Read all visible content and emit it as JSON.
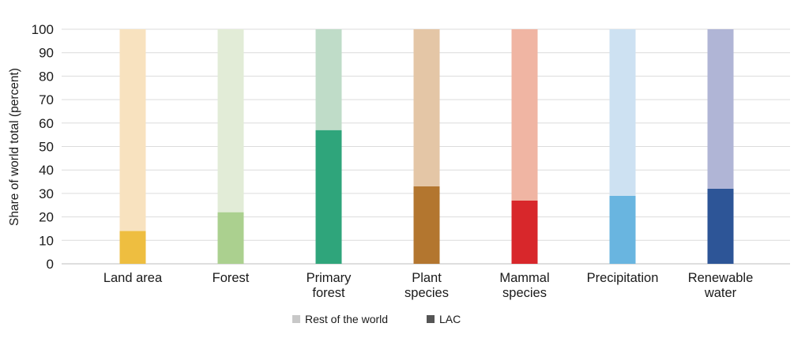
{
  "chart_data": {
    "type": "bar",
    "stacked": true,
    "categories": [
      [
        "Land area"
      ],
      [
        "Forest"
      ],
      [
        "Primary",
        "forest"
      ],
      [
        "Plant",
        "species"
      ],
      [
        "Mammal",
        "species"
      ],
      [
        "Precipitation"
      ],
      [
        "Renewable",
        "water"
      ]
    ],
    "series": [
      {
        "name": "LAC",
        "values": [
          14,
          22,
          57,
          33,
          27,
          29,
          32
        ]
      },
      {
        "name": "Rest of the world",
        "values": [
          86,
          78,
          43,
          67,
          73,
          71,
          68
        ]
      }
    ],
    "colors": {
      "LAC": [
        "#eebe40",
        "#abd08f",
        "#2fa57b",
        "#b3762f",
        "#d8272b",
        "#69b5e0",
        "#2d5597"
      ],
      "Rest of the world": [
        "#f8e2bf",
        "#e2ecd7",
        "#bfdcc8",
        "#e4c6a6",
        "#f0b5a3",
        "#cde1f2",
        "#b0b5d6"
      ]
    },
    "legend_swatch_colors": {
      "Rest of the world": "#c8c8c8",
      "LAC": "#555555"
    },
    "ylabel": "Share of world total (percent)",
    "ylim": [
      0,
      100
    ],
    "yticks": [
      0,
      10,
      20,
      30,
      40,
      50,
      60,
      70,
      80,
      90,
      100
    ],
    "grid": true,
    "legend_position": "bottom-center",
    "legend_order": [
      "Rest of the world",
      "LAC"
    ]
  }
}
